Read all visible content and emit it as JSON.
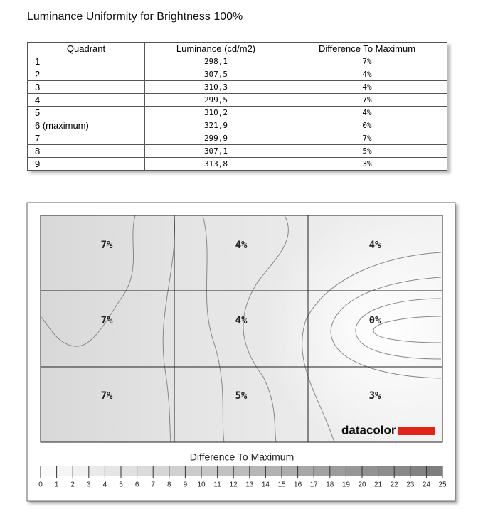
{
  "header": {
    "title": "Luminance Uniformity for Brightness 100%"
  },
  "table": {
    "headers": [
      "Quadrant",
      "Luminance (cd/m2)",
      "Difference To Maximum"
    ],
    "rows": [
      [
        "1",
        "298,1",
        "7%"
      ],
      [
        "2",
        "307,5",
        "4%"
      ],
      [
        "3",
        "310,3",
        "4%"
      ],
      [
        "4",
        "299,5",
        "7%"
      ],
      [
        "5",
        "310,2",
        "4%"
      ],
      [
        "6 (maximum)",
        "321,9",
        "0%"
      ],
      [
        "7",
        "299,9",
        "7%"
      ],
      [
        "8",
        "307,1",
        "5%"
      ],
      [
        "9",
        "313,8",
        "3%"
      ]
    ]
  },
  "map": {
    "cells": [
      [
        "7%",
        "4%",
        "4%"
      ],
      [
        "7%",
        "4%",
        "0%"
      ],
      [
        "7%",
        "5%",
        "3%"
      ]
    ],
    "logo": "datacolor"
  },
  "scale": {
    "title": "Difference To Maximum",
    "ticks": [
      0,
      1,
      2,
      3,
      4,
      5,
      6,
      7,
      8,
      9,
      10,
      11,
      12,
      13,
      14,
      15,
      16,
      17,
      18,
      19,
      20,
      21,
      22,
      23,
      24,
      25
    ]
  }
}
